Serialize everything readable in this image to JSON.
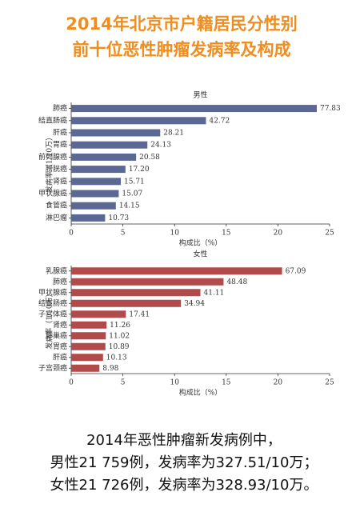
{
  "title_lines": [
    "2014年北京市户籍居民分性别",
    "前十位恶性肿瘤发病率及构成"
  ],
  "chart_data": [
    {
      "type": "bar",
      "orientation": "horizontal",
      "title": "男性",
      "categories": [
        "肺癌",
        "结直肠癌",
        "肝癌",
        "胃癌",
        "前列腺癌",
        "膀胱癌",
        "肾癌",
        "甲状腺癌",
        "食管癌",
        "淋巴瘤"
      ],
      "values": [
        23.76,
        13.04,
        8.61,
        7.37,
        6.28,
        5.25,
        4.8,
        4.6,
        4.32,
        3.28
      ],
      "rates": [
        "77.83",
        "42.72",
        "28.21",
        "24.13",
        "20.58",
        "17.20",
        "15.71",
        "15.07",
        "14.15",
        "10.73"
      ],
      "color": "#5a6893",
      "xlabel": "构成比（%）",
      "ylabel": "发病率（1/10万）",
      "xlim": [
        0,
        25
      ],
      "xticks": [
        0,
        5,
        10,
        15,
        20,
        25
      ]
    },
    {
      "type": "bar",
      "orientation": "horizontal",
      "title": "女性",
      "categories": [
        "乳腺癌",
        "肺癌",
        "甲状腺癌",
        "结直肠癌",
        "子宫体癌",
        "肾癌",
        "卵巢癌",
        "胃癌",
        "肝癌",
        "子宫颈癌"
      ],
      "values": [
        20.4,
        14.74,
        12.5,
        10.62,
        5.29,
        3.42,
        3.35,
        3.31,
        3.08,
        2.73
      ],
      "rates": [
        "67.09",
        "48.48",
        "41.11",
        "34.94",
        "17.41",
        "11.26",
        "11.02",
        "10.89",
        "10.13",
        "8.98"
      ],
      "color": "#b04a4b",
      "xlabel": "构成比（%）",
      "ylabel": "发病率（1/10万）",
      "xlim": [
        0,
        25
      ],
      "xticks": [
        0,
        5,
        10,
        15,
        20,
        25
      ]
    }
  ],
  "notes": [
    "2014年恶性肿瘤新发病例中，",
    "男性21 759例，发病率为327.51/10万；",
    "女性21 726例，发病率为328.93/10万。"
  ]
}
